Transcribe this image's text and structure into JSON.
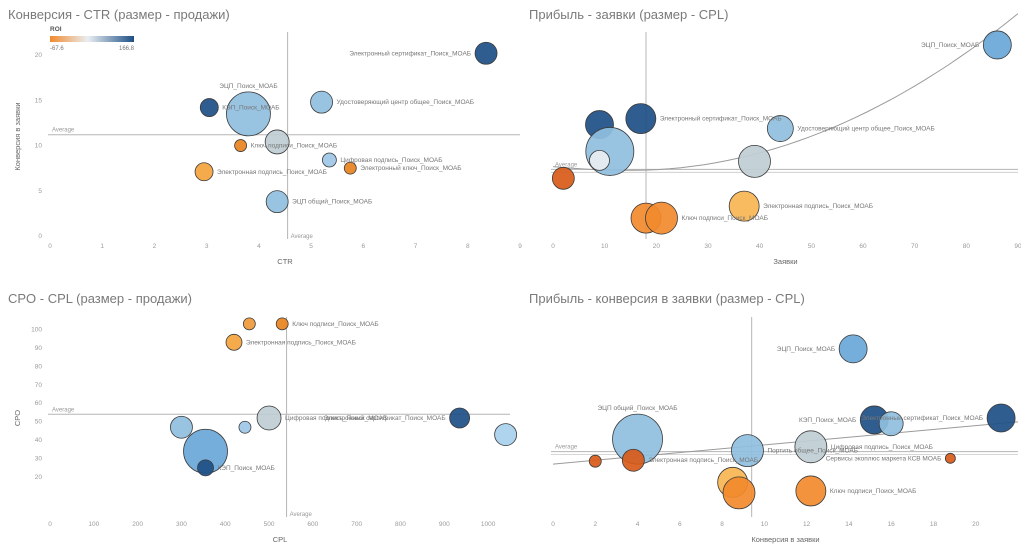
{
  "chart_data": [
    {
      "type": "scatter",
      "title": "Конверсия - CTR (размер - продажи)",
      "xlabel": "CTR",
      "ylabel": "Конверсия в заявки",
      "xlim": [
        0,
        9
      ],
      "ylim": [
        0,
        22
      ],
      "xticks": [
        "0",
        "1",
        "2",
        "3",
        "4",
        "5",
        "6",
        "7",
        "8",
        "9"
      ],
      "yticks": [
        "0",
        "5",
        "10",
        "15",
        "20"
      ],
      "avg_x": 4.55,
      "avg_y": 11.2,
      "avg_label_h": "Average",
      "avg_label_v": "Average",
      "legend": {
        "title": "ROI",
        "min": "-67.6",
        "max": "166.8"
      },
      "points": [
        {
          "x": 8.35,
          "y": 20.2,
          "size": 11,
          "color": "#1e4f86",
          "label": "Электронный сертификат_Поиск_МОАБ"
        },
        {
          "x": 3.8,
          "y": 13.5,
          "size": 22,
          "color": "#8fbfe0",
          "label": "ЭЦП_Поиск_МОАБ"
        },
        {
          "x": 3.05,
          "y": 14.2,
          "size": 9,
          "color": "#1e4f86",
          "label": "КЭП_Поиск_МОАБ"
        },
        {
          "x": 5.2,
          "y": 14.8,
          "size": 11,
          "color": "#8fbfe0",
          "label": "Удостоверяющий центр общее_Поиск_МОАБ"
        },
        {
          "x": 4.35,
          "y": 10.4,
          "size": 12,
          "color": "#bfcdd4",
          "label": ""
        },
        {
          "x": 3.65,
          "y": 10.0,
          "size": 6,
          "color": "#e8821e",
          "label": "Ключ подписи_Поиск_МОАБ"
        },
        {
          "x": 5.35,
          "y": 8.4,
          "size": 7,
          "color": "#9ec7e6",
          "label": "Цифровая подпись_Поиск_МОАБ"
        },
        {
          "x": 5.75,
          "y": 7.5,
          "size": 6,
          "color": "#e8821e",
          "label": "Электронный ключ_Поиск_МОАБ"
        },
        {
          "x": 2.95,
          "y": 7.1,
          "size": 9,
          "color": "#f4a43c",
          "label": "Электронная подпись_Поиск_МОАБ"
        },
        {
          "x": 4.35,
          "y": 3.8,
          "size": 11,
          "color": "#8fbfe0",
          "label": "ЭЦП общий_Поиск_МОАБ"
        }
      ]
    },
    {
      "type": "scatter",
      "title": "Прибыль - заявки (размер - CPL)",
      "xlabel": "Заявки",
      "ylabel": "",
      "xlim": [
        0,
        90
      ],
      "ylim": [
        0,
        20
      ],
      "xticks": [
        "0",
        "10",
        "20",
        "30",
        "40",
        "50",
        "60",
        "70",
        "80",
        "90"
      ],
      "yticks": [],
      "avg_x": 18,
      "avg_y": 6.7,
      "avg_label_h": "Average",
      "points": [
        {
          "x": 86,
          "y": 19.2,
          "size": 14,
          "color": "#6aa7d8",
          "label": "ЭЦП_Поиск_МОАБ"
        },
        {
          "x": 9,
          "y": 11.2,
          "size": 14,
          "color": "#1e4f86",
          "label": ""
        },
        {
          "x": 17,
          "y": 11.8,
          "size": 15,
          "color": "#1e4f86",
          "label": "Электронный сертификат_Поиск_МОАБ"
        },
        {
          "x": 11,
          "y": 8.5,
          "size": 24,
          "color": "#8fbfe0",
          "label": ""
        },
        {
          "x": 9,
          "y": 7.6,
          "size": 10,
          "color": "#e9eef2",
          "label": ""
        },
        {
          "x": 44,
          "y": 10.8,
          "size": 13,
          "color": "#8fbfe0",
          "label": "Удостоверяющий центр общее_Поиск_МОАБ"
        },
        {
          "x": 39,
          "y": 7.5,
          "size": 16,
          "color": "#bfcdd4",
          "label": ""
        },
        {
          "x": 2,
          "y": 5.8,
          "size": 11,
          "color": "#d85a18",
          "label": ""
        },
        {
          "x": 18,
          "y": 1.8,
          "size": 15,
          "color": "#f28a2c",
          "label": ""
        },
        {
          "x": 21,
          "y": 1.8,
          "size": 16,
          "color": "#f28a2c",
          "label": "Ключ подписи_Поиск_МОАБ"
        },
        {
          "x": 37,
          "y": 3.0,
          "size": 15,
          "color": "#f9b552",
          "label": "Электронная подпись_Поиск_МОАБ"
        }
      ]
    },
    {
      "type": "scatter",
      "title": "CPO - CPL (размер - продажи)",
      "xlabel": "CPL",
      "ylabel": "CPO",
      "xlim": [
        0,
        1050
      ],
      "ylim": [
        0,
        104
      ],
      "xticks": [
        "0",
        "100",
        "200",
        "300",
        "400",
        "500",
        "600",
        "700",
        "800",
        "900",
        "1000"
      ],
      "yticks": [
        "20",
        "30",
        "40",
        "50",
        "60",
        "70",
        "80",
        "90",
        "100"
      ],
      "avg_x": 540,
      "avg_y": 54,
      "avg_label_h": "Average",
      "avg_label_v": "Average",
      "points": [
        {
          "x": 455,
          "y": 103,
          "size": 6,
          "color": "#f09a3a",
          "label": ""
        },
        {
          "x": 530,
          "y": 103,
          "size": 6,
          "color": "#e8821e",
          "label": "Ключ подписи_Поиск_МОАБ"
        },
        {
          "x": 420,
          "y": 93,
          "size": 8,
          "color": "#f4a43c",
          "label": "Электронная подпись_Поиск_МОАБ"
        },
        {
          "x": 935,
          "y": 52,
          "size": 10,
          "color": "#1e4f86",
          "label": "Электронный сертификат_Поиск_МОАБ"
        },
        {
          "x": 500,
          "y": 52,
          "size": 12,
          "color": "#bfcdd4",
          "label": "Цифровая подпись_Поиск_МОАБ"
        },
        {
          "x": 445,
          "y": 47,
          "size": 6,
          "color": "#9ec7e6",
          "label": ""
        },
        {
          "x": 300,
          "y": 47,
          "size": 11,
          "color": "#8fbfe0",
          "label": ""
        },
        {
          "x": 1040,
          "y": 43,
          "size": 11,
          "color": "#a8d0ec",
          "label": ""
        },
        {
          "x": 355,
          "y": 34,
          "size": 22,
          "color": "#6aa7d8",
          "label": ""
        },
        {
          "x": 355,
          "y": 25,
          "size": 8,
          "color": "#1e4f86",
          "label": "КЭП_Поиск_МОАБ"
        }
      ]
    },
    {
      "type": "scatter",
      "title": "Прибыль - конверсия в заявки (размер - CPL)",
      "xlabel": "Конверсия в заявки",
      "ylabel": "",
      "xlim": [
        0,
        22
      ],
      "ylim": [
        0,
        20
      ],
      "xticks": [
        "0",
        "2",
        "4",
        "6",
        "8",
        "10",
        "12",
        "14",
        "16",
        "18",
        "20"
      ],
      "yticks": [],
      "avg_x": 9.4,
      "avg_y": 6.5,
      "avg_label_h": "Average",
      "points": [
        {
          "x": 14.2,
          "y": 17.2,
          "size": 14,
          "color": "#6aa7d8",
          "label": "ЭЦП_Поиск_МОАБ"
        },
        {
          "x": 15.2,
          "y": 9.8,
          "size": 14,
          "color": "#1e4f86",
          "label": "КЭП_Поиск_МОАБ"
        },
        {
          "x": 16.0,
          "y": 9.4,
          "size": 12,
          "color": "#8fbfe0",
          "label": ""
        },
        {
          "x": 21.2,
          "y": 10.0,
          "size": 14,
          "color": "#1e4f86",
          "label": "Электронный сертификат_Поиск_МОАБ"
        },
        {
          "x": 4.0,
          "y": 7.8,
          "size": 25,
          "color": "#8fbfe0",
          "label": "ЭЦП общий_Поиск_МОАБ"
        },
        {
          "x": 9.2,
          "y": 6.6,
          "size": 16,
          "color": "#8fbfe0",
          "label": "Портить общее_Поиск_МОАБ"
        },
        {
          "x": 12.2,
          "y": 7.0,
          "size": 16,
          "color": "#bfcdd4",
          "label": "Цифровая подпись_Поиск_МОАБ"
        },
        {
          "x": 18.8,
          "y": 5.8,
          "size": 5,
          "color": "#d85a18",
          "label": "Сервисы экоплюс маркета КСВ МОАБ"
        },
        {
          "x": 2.0,
          "y": 5.5,
          "size": 6,
          "color": "#d85a18",
          "label": ""
        },
        {
          "x": 3.8,
          "y": 5.6,
          "size": 11,
          "color": "#d85a18",
          "label": "Электронная подпись_Поиск_МОАБ"
        },
        {
          "x": 8.5,
          "y": 3.3,
          "size": 15,
          "color": "#f9b552",
          "label": ""
        },
        {
          "x": 8.8,
          "y": 2.2,
          "size": 16,
          "color": "#f28a2c",
          "label": ""
        },
        {
          "x": 12.2,
          "y": 2.4,
          "size": 15,
          "color": "#f28a2c",
          "label": "Ключ подписи_Поиск_МОАБ"
        }
      ]
    }
  ]
}
